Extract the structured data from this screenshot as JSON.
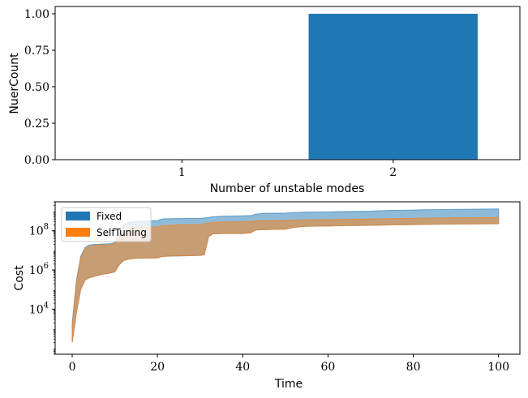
{
  "chart_data": [
    {
      "type": "bar",
      "categories": [
        "1",
        "2"
      ],
      "values": [
        0,
        1
      ],
      "color": "#1f77b4",
      "xlabel": "Number of unstable modes",
      "ylabel": "NuerCount",
      "ylim": [
        0,
        1.05
      ],
      "yticks": [
        0,
        0.25,
        0.5,
        0.75,
        1.0
      ],
      "ytick_labels": [
        "0.00",
        "0.25",
        "0.50",
        "0.75",
        "1.00"
      ],
      "grid": false
    },
    {
      "type": "area",
      "xlabel": "Time",
      "ylabel": "Cost",
      "yscale": "log",
      "xlim": [
        -4,
        105
      ],
      "ylim": [
        50,
        3000000000
      ],
      "xticks": [
        0,
        20,
        40,
        60,
        80,
        100
      ],
      "xtick_labels": [
        "0",
        "20",
        "40",
        "60",
        "80",
        "100"
      ],
      "yticks": [
        10000,
        1000000,
        100000000
      ],
      "ytick_labels": [
        "10^4",
        "10^6",
        "10^8"
      ],
      "legend_position": "top-left",
      "grid": false,
      "series": [
        {
          "name": "Fixed",
          "color": "#1f77b4",
          "x": [
            0,
            1,
            2,
            3,
            4,
            5,
            7,
            9,
            10,
            11,
            12,
            13,
            15,
            20,
            21,
            22,
            25,
            30,
            31,
            32,
            33,
            35,
            40,
            42,
            43,
            45,
            50,
            52,
            55,
            60,
            62,
            65,
            70,
            72,
            75,
            80,
            82,
            85,
            90,
            95,
            100
          ],
          "lower": [
            200,
            7000,
            100000,
            300000,
            400000,
            450000,
            600000,
            700000,
            800000,
            1800000,
            3000000,
            3500000,
            4000000,
            4100000,
            4800000,
            5000000,
            5200000,
            5500000,
            6000000,
            50000000,
            70000000,
            72000000,
            72000000,
            80000000,
            110000000,
            115000000,
            120000000,
            150000000,
            170000000,
            175000000,
            180000000,
            185000000,
            190000000,
            195000000,
            200000000,
            205000000,
            210000000,
            215000000,
            220000000,
            225000000,
            230000000
          ],
          "upper": [
            2000,
            300000,
            5000000,
            14000000,
            19000000,
            20000000,
            21000000,
            22000000,
            25000000,
            70000000,
            200000000,
            260000000,
            300000000,
            330000000,
            400000000,
            410000000,
            420000000,
            430000000,
            450000000,
            480000000,
            520000000,
            550000000,
            580000000,
            600000000,
            700000000,
            780000000,
            800000000,
            850000000,
            900000000,
            920000000,
            950000000,
            970000000,
            1000000000,
            1050000000,
            1100000000,
            1150000000,
            1180000000,
            1200000000,
            1250000000,
            1280000000,
            1300000000
          ]
        },
        {
          "name": "SelfTuning",
          "color": "#ff7f0e",
          "x": [
            0,
            1,
            2,
            3,
            4,
            5,
            7,
            9,
            10,
            11,
            12,
            13,
            15,
            20,
            21,
            22,
            25,
            30,
            31,
            32,
            33,
            35,
            40,
            42,
            43,
            45,
            50,
            52,
            55,
            60,
            62,
            65,
            70,
            72,
            75,
            80,
            82,
            85,
            90,
            95,
            100
          ],
          "lower": [
            200,
            7000,
            100000,
            300000,
            400000,
            450000,
            600000,
            700000,
            800000,
            1800000,
            3000000,
            3500000,
            4000000,
            4100000,
            4800000,
            5000000,
            5200000,
            5500000,
            6000000,
            50000000,
            70000000,
            72000000,
            72000000,
            80000000,
            110000000,
            115000000,
            120000000,
            150000000,
            170000000,
            175000000,
            180000000,
            185000000,
            190000000,
            195000000,
            200000000,
            205000000,
            210000000,
            215000000,
            220000000,
            225000000,
            230000000
          ],
          "upper": [
            1500,
            250000,
            4000000,
            12000000,
            16000000,
            18000000,
            19000000,
            20000000,
            22000000,
            50000000,
            100000000,
            130000000,
            150000000,
            160000000,
            180000000,
            190000000,
            200000000,
            210000000,
            230000000,
            250000000,
            270000000,
            280000000,
            290000000,
            300000000,
            320000000,
            330000000,
            340000000,
            350000000,
            360000000,
            370000000,
            380000000,
            390000000,
            400000000,
            410000000,
            420000000,
            430000000,
            440000000,
            450000000,
            460000000,
            470000000,
            480000000
          ]
        }
      ]
    }
  ]
}
